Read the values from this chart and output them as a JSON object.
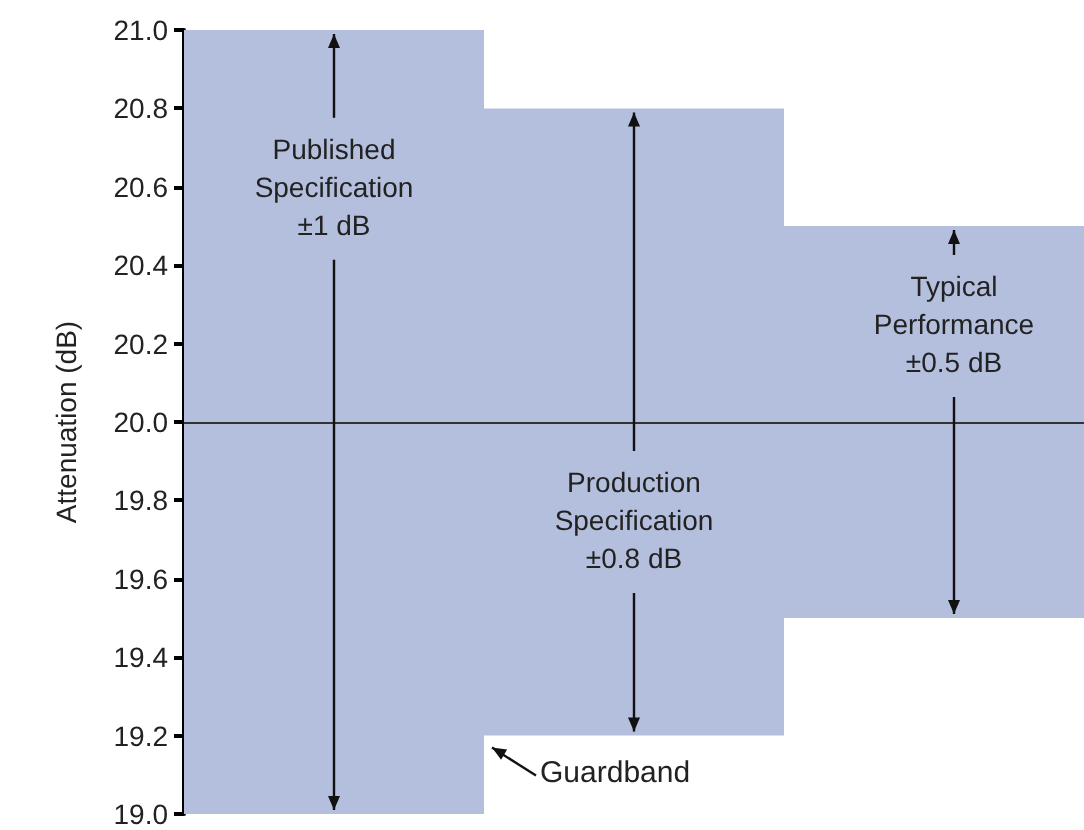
{
  "chart_data": {
    "type": "bar",
    "ylabel": "Attenuation (dB)",
    "categories": [
      null,
      null,
      null
    ],
    "base": [
      19.0,
      19.2,
      19.5
    ],
    "values": [
      2.0,
      1.6,
      1.0
    ],
    "color": "#b3bfdc",
    "ylim": [
      19.0,
      21.0
    ],
    "yticks": [
      {
        "value": 19.0,
        "label": "19.0"
      },
      19.2,
      19.4,
      19.6,
      19.8,
      {
        "value": 20.0,
        "label": "20.0"
      },
      20.2,
      20.4,
      20.6,
      20.8,
      {
        "value": 21.0,
        "label": "21.0"
      }
    ],
    "ref_lines": [
      {
        "axis": "y",
        "value": 20.0,
        "color": "#333333"
      }
    ],
    "annotations": [
      "Published\nSpecification\n±1 dB",
      "Production\nSpecification\n±0.8 dB",
      "Typical\nPerformance\n±0.5 dB",
      "Guardband"
    ],
    "grid": false
  }
}
